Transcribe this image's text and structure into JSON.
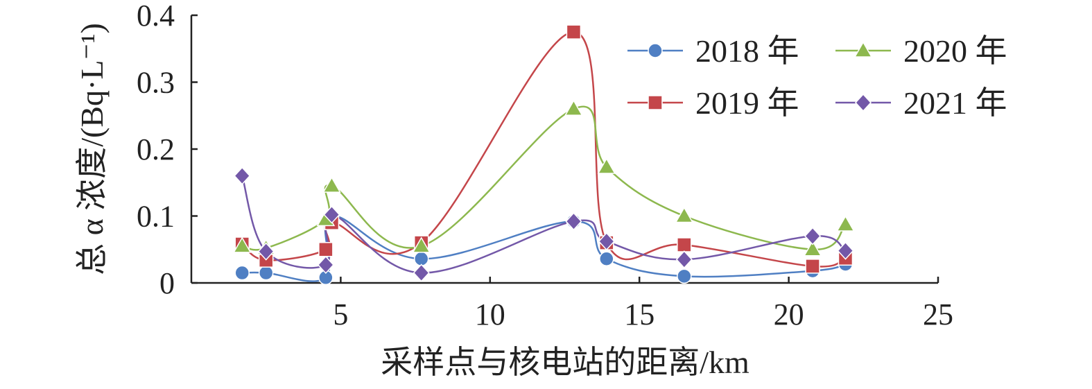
{
  "chart_data": {
    "type": "line",
    "xlabel": "采样点与核电站的距离/km",
    "ylabel": "总 α 浓度/(Bq·L⁻¹)",
    "xlim": [
      0,
      25
    ],
    "ylim": [
      0,
      0.4
    ],
    "xticks": [
      5,
      10,
      15,
      20,
      25
    ],
    "yticks": [
      0,
      0.1,
      0.2,
      0.3,
      0.4
    ],
    "ytick_labels": [
      "0",
      "0.1",
      "0.2",
      "0.3",
      "0.4"
    ],
    "grid": false,
    "legend_position": "top-right",
    "series": [
      {
        "name": "2018 年",
        "marker": "circle",
        "color": "#4F7FC3",
        "points": [
          [
            1.7,
            0.015
          ],
          [
            2.5,
            0.015
          ],
          [
            4.5,
            0.008
          ],
          [
            4.7,
            0.1
          ],
          [
            7.7,
            0.036
          ],
          [
            12.8,
            0.092
          ],
          [
            13.9,
            0.036
          ],
          [
            16.5,
            0.01
          ],
          [
            20.8,
            0.018
          ],
          [
            21.9,
            0.028
          ]
        ]
      },
      {
        "name": "2019 年",
        "marker": "square",
        "color": "#C4464A",
        "points": [
          [
            1.7,
            0.058
          ],
          [
            2.5,
            0.034
          ],
          [
            4.5,
            0.05
          ],
          [
            4.7,
            0.09
          ],
          [
            7.7,
            0.06
          ],
          [
            12.8,
            0.375
          ],
          [
            13.9,
            0.06
          ],
          [
            16.5,
            0.057
          ],
          [
            20.8,
            0.025
          ],
          [
            21.9,
            0.037
          ]
        ]
      },
      {
        "name": "2020 年",
        "marker": "triangle",
        "color": "#8DB84E",
        "points": [
          [
            1.7,
            0.055
          ],
          [
            2.5,
            0.052
          ],
          [
            4.5,
            0.095
          ],
          [
            4.7,
            0.145
          ],
          [
            7.7,
            0.055
          ],
          [
            12.8,
            0.26
          ],
          [
            13.9,
            0.173
          ],
          [
            16.5,
            0.1
          ],
          [
            20.8,
            0.05
          ],
          [
            21.9,
            0.087
          ]
        ]
      },
      {
        "name": "2021 年",
        "marker": "diamond",
        "color": "#7358A8",
        "points": [
          [
            1.7,
            0.16
          ],
          [
            2.5,
            0.047
          ],
          [
            4.5,
            0.027
          ],
          [
            4.7,
            0.102
          ],
          [
            7.7,
            0.015
          ],
          [
            12.8,
            0.092
          ],
          [
            13.9,
            0.062
          ],
          [
            16.5,
            0.035
          ],
          [
            20.8,
            0.07
          ],
          [
            21.9,
            0.048
          ]
        ]
      }
    ]
  }
}
